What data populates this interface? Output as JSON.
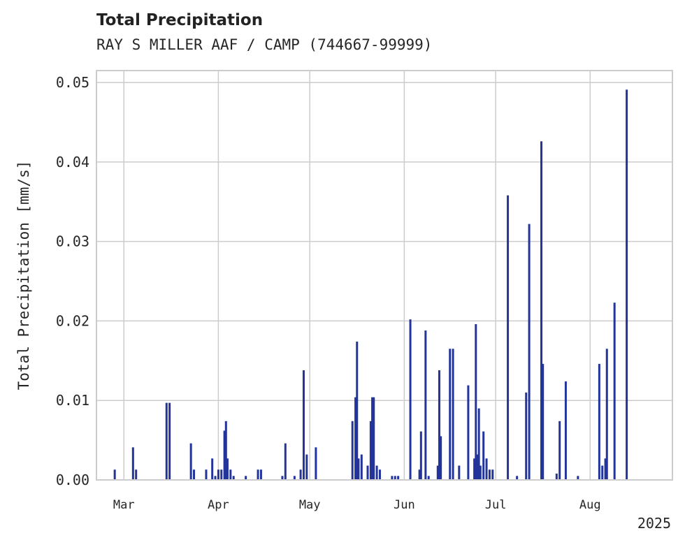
{
  "chart_data": {
    "type": "bar",
    "title": "Total Precipitation",
    "subtitle": "RAY S MILLER AAF / CAMP (744667-99999)",
    "ylabel": "Total Precipitation [mm/s]",
    "xlabel": "",
    "year_label": "2025",
    "ylim": [
      0,
      0.0515
    ],
    "yticks": [
      "0.00",
      "0.01",
      "0.02",
      "0.03",
      "0.04",
      "0.05"
    ],
    "ytick_values": [
      0,
      0.01,
      0.02,
      0.03,
      0.04,
      0.05
    ],
    "xlim": [
      "2025-02-20",
      "2025-08-28"
    ],
    "xticks": [
      {
        "date": "2025-03-01",
        "label": "Mar"
      },
      {
        "date": "2025-04-01",
        "label": "Apr"
      },
      {
        "date": "2025-05-01",
        "label": "May"
      },
      {
        "date": "2025-06-01",
        "label": "Jun"
      },
      {
        "date": "2025-07-01",
        "label": "Jul"
      },
      {
        "date": "2025-08-01",
        "label": "Aug"
      }
    ],
    "grid": true,
    "bar_color": "#23349a",
    "series": [
      {
        "values": [
          {
            "x": "2025-02-26",
            "y": 0.0013
          },
          {
            "x": "2025-03-04",
            "y": 0.0041
          },
          {
            "x": "2025-03-05",
            "y": 0.0013
          },
          {
            "x": "2025-03-15",
            "y": 0.0097
          },
          {
            "x": "2025-03-16",
            "y": 0.0097
          },
          {
            "x": "2025-03-23",
            "y": 0.0046
          },
          {
            "x": "2025-03-24",
            "y": 0.0013
          },
          {
            "x": "2025-03-28",
            "y": 0.0013
          },
          {
            "x": "2025-03-30",
            "y": 0.0027
          },
          {
            "x": "2025-03-31",
            "y": 0.0005
          },
          {
            "x": "2025-04-01",
            "y": 0.0013
          },
          {
            "x": "2025-04-02",
            "y": 0.0013
          },
          {
            "x": "2025-04-03",
            "y": 0.0062
          },
          {
            "x": "2025-04-03T12",
            "y": 0.0074
          },
          {
            "x": "2025-04-04",
            "y": 0.0027
          },
          {
            "x": "2025-04-05",
            "y": 0.0013
          },
          {
            "x": "2025-04-06",
            "y": 0.0005
          },
          {
            "x": "2025-04-10",
            "y": 0.0005
          },
          {
            "x": "2025-04-14",
            "y": 0.0013
          },
          {
            "x": "2025-04-15",
            "y": 0.0013
          },
          {
            "x": "2025-04-22",
            "y": 0.0005
          },
          {
            "x": "2025-04-23",
            "y": 0.0046
          },
          {
            "x": "2025-04-26",
            "y": 0.0005
          },
          {
            "x": "2025-04-28",
            "y": 0.0013
          },
          {
            "x": "2025-04-29",
            "y": 0.0138
          },
          {
            "x": "2025-04-30",
            "y": 0.0032
          },
          {
            "x": "2025-05-03",
            "y": 0.0041
          },
          {
            "x": "2025-05-15",
            "y": 0.0074
          },
          {
            "x": "2025-05-16",
            "y": 0.0104
          },
          {
            "x": "2025-05-16T12",
            "y": 0.0174
          },
          {
            "x": "2025-05-17",
            "y": 0.0027
          },
          {
            "x": "2025-05-18",
            "y": 0.0032
          },
          {
            "x": "2025-05-20",
            "y": 0.0018
          },
          {
            "x": "2025-05-21",
            "y": 0.0074
          },
          {
            "x": "2025-05-21T12",
            "y": 0.0104
          },
          {
            "x": "2025-05-22",
            "y": 0.0104
          },
          {
            "x": "2025-05-23",
            "y": 0.0018
          },
          {
            "x": "2025-05-24",
            "y": 0.0013
          },
          {
            "x": "2025-05-28",
            "y": 0.0005
          },
          {
            "x": "2025-05-29",
            "y": 0.0005
          },
          {
            "x": "2025-05-30",
            "y": 0.0005
          },
          {
            "x": "2025-06-03",
            "y": 0.0202
          },
          {
            "x": "2025-06-06",
            "y": 0.0013
          },
          {
            "x": "2025-06-06T12",
            "y": 0.0061
          },
          {
            "x": "2025-06-08",
            "y": 0.0188
          },
          {
            "x": "2025-06-09",
            "y": 0.0005
          },
          {
            "x": "2025-06-12",
            "y": 0.0018
          },
          {
            "x": "2025-06-12T12",
            "y": 0.0138
          },
          {
            "x": "2025-06-13",
            "y": 0.0055
          },
          {
            "x": "2025-06-16",
            "y": 0.0165
          },
          {
            "x": "2025-06-17",
            "y": 0.0165
          },
          {
            "x": "2025-06-19",
            "y": 0.0018
          },
          {
            "x": "2025-06-22",
            "y": 0.0119
          },
          {
            "x": "2025-06-24",
            "y": 0.0027
          },
          {
            "x": "2025-06-24T12",
            "y": 0.0196
          },
          {
            "x": "2025-06-25",
            "y": 0.0032
          },
          {
            "x": "2025-06-25T12",
            "y": 0.009
          },
          {
            "x": "2025-06-26",
            "y": 0.0018
          },
          {
            "x": "2025-06-27",
            "y": 0.0061
          },
          {
            "x": "2025-06-28",
            "y": 0.0027
          },
          {
            "x": "2025-06-29",
            "y": 0.0013
          },
          {
            "x": "2025-06-30",
            "y": 0.0013
          },
          {
            "x": "2025-07-05",
            "y": 0.0358
          },
          {
            "x": "2025-07-08",
            "y": 0.0005
          },
          {
            "x": "2025-07-11",
            "y": 0.011
          },
          {
            "x": "2025-07-12",
            "y": 0.0322
          },
          {
            "x": "2025-07-16",
            "y": 0.0426
          },
          {
            "x": "2025-07-16T12",
            "y": 0.0146
          },
          {
            "x": "2025-07-21",
            "y": 0.0008
          },
          {
            "x": "2025-07-22",
            "y": 0.0074
          },
          {
            "x": "2025-07-24",
            "y": 0.0124
          },
          {
            "x": "2025-07-28",
            "y": 0.0005
          },
          {
            "x": "2025-08-04",
            "y": 0.0146
          },
          {
            "x": "2025-08-05",
            "y": 0.0018
          },
          {
            "x": "2025-08-06",
            "y": 0.0027
          },
          {
            "x": "2025-08-06T12",
            "y": 0.0165
          },
          {
            "x": "2025-08-09",
            "y": 0.0223
          },
          {
            "x": "2025-08-13",
            "y": 0.0491
          }
        ]
      }
    ]
  }
}
